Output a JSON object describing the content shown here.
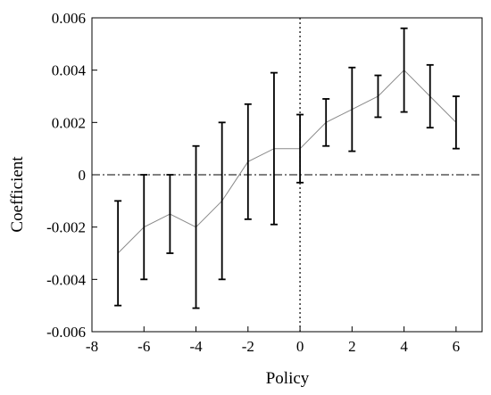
{
  "chart_data": {
    "type": "line",
    "title": "",
    "xlabel": "Policy",
    "ylabel": "Coefficient",
    "xlim": [
      -8,
      7
    ],
    "ylim": [
      -0.006,
      0.006
    ],
    "x_ticks": [
      -8,
      -6,
      -4,
      -2,
      0,
      2,
      4,
      6
    ],
    "x_tick_labels": [
      "-8",
      "-6",
      "-4",
      "-2",
      "0",
      "2",
      "4",
      "6"
    ],
    "y_ticks": [
      -0.006,
      -0.004,
      -0.002,
      0,
      0.002,
      0.004,
      0.006
    ],
    "y_tick_labels": [
      "-0.006",
      "-0.004",
      "-0.002",
      "0",
      "0.002",
      "0.004",
      "0.006"
    ],
    "grid": false,
    "reference_lines": {
      "horizontal_y": 0,
      "horizontal_style": "dash-dot",
      "vertical_x": 0,
      "vertical_style": "dotted"
    },
    "series": [
      {
        "x": [
          -7,
          -6,
          -5,
          -4,
          -3,
          -2,
          -1,
          0,
          1,
          2,
          3,
          4,
          5,
          6
        ],
        "values": [
          -0.003,
          -0.002,
          -0.0015,
          -0.002,
          -0.001,
          0.0005,
          0.001,
          0.001,
          0.002,
          0.0025,
          0.003,
          0.004,
          0.003,
          0.002
        ],
        "lower": [
          -0.005,
          -0.004,
          -0.003,
          -0.0051,
          -0.004,
          -0.0017,
          -0.0019,
          -0.0003,
          0.0011,
          0.0009,
          0.0022,
          0.0024,
          0.0018,
          0.001
        ],
        "upper": [
          -0.001,
          0.0,
          0.0,
          0.0011,
          0.002,
          0.0027,
          0.0039,
          0.0023,
          0.0029,
          0.0041,
          0.0038,
          0.0056,
          0.0042,
          0.003
        ],
        "line_color": "#8a8a8a",
        "errorbar_color": "#000000"
      }
    ]
  }
}
